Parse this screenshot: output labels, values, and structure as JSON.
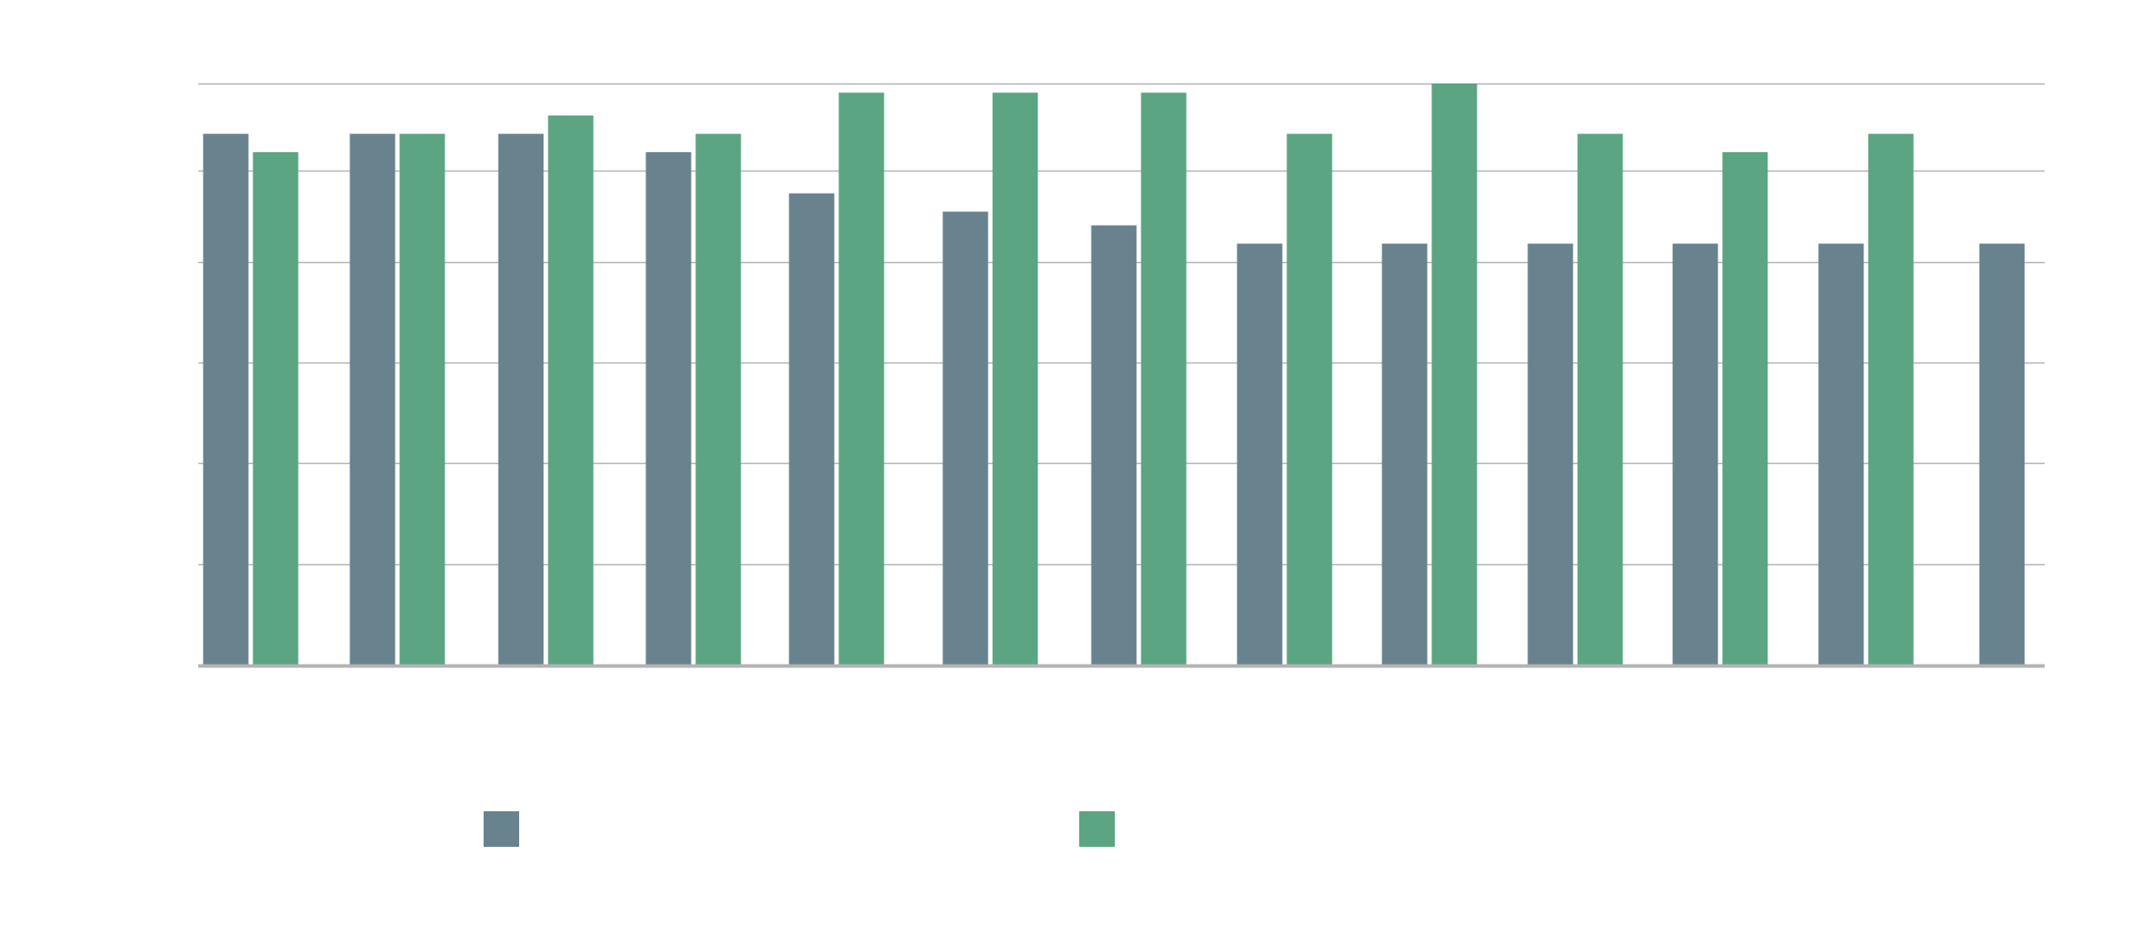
{
  "chart_data": {
    "type": "bar",
    "title": "",
    "xlabel": "",
    "ylabel": "",
    "ylim": [
      0,
      6.35
    ],
    "y_gridlines": [
      0,
      1.1,
      2.2,
      3.3,
      4.4,
      5.4,
      6.35
    ],
    "grid": true,
    "legend_placement": "bottom",
    "categories": [
      "",
      "",
      "",
      "",
      "",
      "",
      "",
      "",
      "",
      "",
      "",
      "",
      ""
    ],
    "series": [
      {
        "color": "#68838e",
        "values": [
          5.8,
          5.8,
          5.8,
          5.6,
          5.15,
          4.95,
          4.8,
          4.6,
          4.6,
          4.6,
          4.6,
          4.6,
          4.6
        ]
      },
      {
        "color": "#5ba583",
        "values": [
          5.6,
          5.8,
          6.0,
          5.8,
          6.25,
          6.25,
          6.25,
          5.8,
          6.35,
          5.8,
          5.6,
          5.8,
          null
        ]
      }
    ],
    "colors": {
      "gridline": "#b3b3b3",
      "baseline": "#b3b3b3",
      "background": "#ffffff"
    }
  }
}
